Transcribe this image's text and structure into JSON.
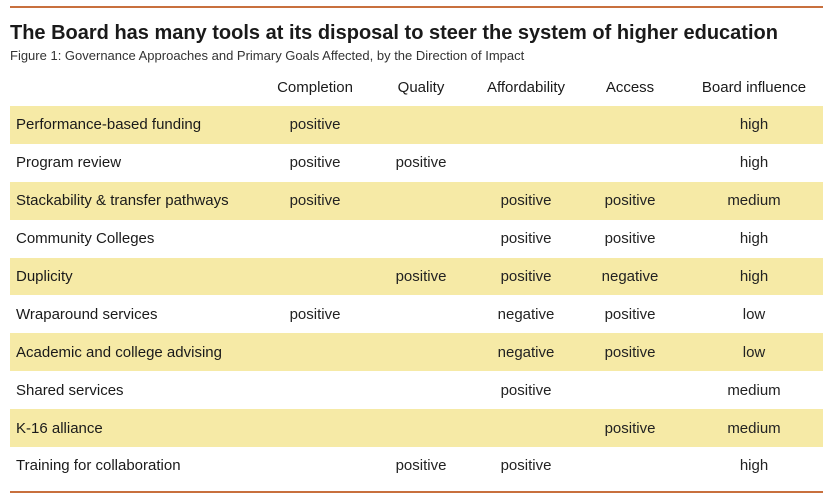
{
  "title": "The Board has many tools at its disposal to steer the system of higher education",
  "subtitle": "Figure 1: Governance Approaches and Primary Goals Affected, by the Direction of Impact",
  "colors": {
    "rule": "#c8703e",
    "stripe": "#f6eaa6"
  },
  "chart_data": {
    "type": "table",
    "columns": [
      "",
      "Completion",
      "Quality",
      "Affordability",
      "Access",
      "Board influence"
    ],
    "rows": [
      {
        "label": "Performance-based funding",
        "cells": [
          "positive",
          "",
          "",
          "",
          "high"
        ]
      },
      {
        "label": "Program review",
        "cells": [
          "positive",
          "positive",
          "",
          "",
          "high"
        ]
      },
      {
        "label": "Stackability & transfer pathways",
        "cells": [
          "positive",
          "",
          "positive",
          "positive",
          "medium"
        ]
      },
      {
        "label": "Community Colleges",
        "cells": [
          "",
          "",
          "positive",
          "positive",
          "high"
        ]
      },
      {
        "label": "Duplicity",
        "cells": [
          "",
          "positive",
          "positive",
          "negative",
          "high"
        ]
      },
      {
        "label": "Wraparound services",
        "cells": [
          "positive",
          "",
          "negative",
          "positive",
          "low"
        ]
      },
      {
        "label": "Academic and college advising",
        "cells": [
          "",
          "",
          "negative",
          "positive",
          "low"
        ]
      },
      {
        "label": "Shared services",
        "cells": [
          "",
          "",
          "positive",
          "",
          "medium"
        ]
      },
      {
        "label": "K-16 alliance",
        "cells": [
          "",
          "",
          "",
          "positive",
          "medium"
        ]
      },
      {
        "label": "Training for collaboration",
        "cells": [
          "",
          "positive",
          "positive",
          "",
          "high"
        ]
      }
    ]
  }
}
